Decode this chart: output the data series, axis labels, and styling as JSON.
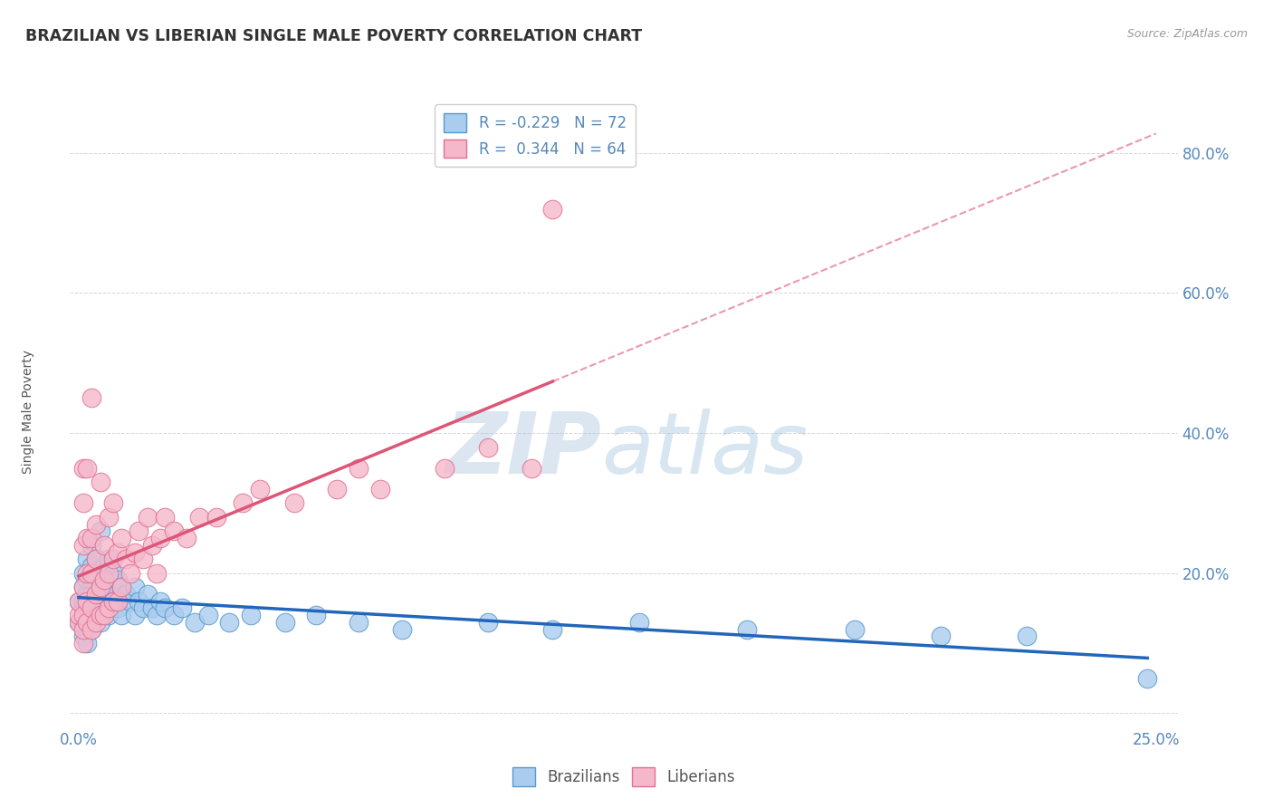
{
  "title": "BRAZILIAN VS LIBERIAN SINGLE MALE POVERTY CORRELATION CHART",
  "source": "Source: ZipAtlas.com",
  "ylabel": "Single Male Poverty",
  "legend_R_N": [
    {
      "R": "-0.229",
      "N": "72"
    },
    {
      "R": "0.344",
      "N": "64"
    }
  ],
  "watermark_zip": "ZIP",
  "watermark_atlas": "atlas",
  "brazil_color": "#aaccee",
  "brazil_edge": "#5599cc",
  "liberia_color": "#f5b8cb",
  "liberia_edge": "#e07090",
  "trend_brazil_color": "#2266bb",
  "trend_liberia_color": "#dd5577",
  "background_color": "#ffffff",
  "grid_color": "#cccccc",
  "title_color": "#333333",
  "axis_label_color": "#5588bb",
  "brazil_points_x": [
    0.0,
    0.0,
    0.001,
    0.001,
    0.001,
    0.001,
    0.001,
    0.001,
    0.001,
    0.002,
    0.002,
    0.002,
    0.002,
    0.002,
    0.002,
    0.002,
    0.003,
    0.003,
    0.003,
    0.003,
    0.003,
    0.003,
    0.003,
    0.004,
    0.004,
    0.004,
    0.004,
    0.005,
    0.005,
    0.005,
    0.005,
    0.006,
    0.006,
    0.006,
    0.007,
    0.007,
    0.007,
    0.008,
    0.008,
    0.009,
    0.009,
    0.01,
    0.01,
    0.011,
    0.012,
    0.013,
    0.013,
    0.014,
    0.015,
    0.016,
    0.017,
    0.018,
    0.019,
    0.02,
    0.022,
    0.024,
    0.027,
    0.03,
    0.035,
    0.04,
    0.048,
    0.055,
    0.065,
    0.075,
    0.095,
    0.11,
    0.13,
    0.155,
    0.18,
    0.2,
    0.22,
    0.248
  ],
  "brazil_points_y": [
    0.13,
    0.16,
    0.11,
    0.13,
    0.14,
    0.16,
    0.18,
    0.2,
    0.15,
    0.1,
    0.12,
    0.13,
    0.15,
    0.17,
    0.19,
    0.22,
    0.12,
    0.14,
    0.15,
    0.17,
    0.19,
    0.21,
    0.24,
    0.14,
    0.16,
    0.2,
    0.22,
    0.13,
    0.15,
    0.18,
    0.26,
    0.15,
    0.18,
    0.21,
    0.14,
    0.17,
    0.22,
    0.16,
    0.2,
    0.15,
    0.19,
    0.14,
    0.18,
    0.17,
    0.16,
    0.14,
    0.18,
    0.16,
    0.15,
    0.17,
    0.15,
    0.14,
    0.16,
    0.15,
    0.14,
    0.15,
    0.13,
    0.14,
    0.13,
    0.14,
    0.13,
    0.14,
    0.13,
    0.12,
    0.13,
    0.12,
    0.13,
    0.12,
    0.12,
    0.11,
    0.11,
    0.05
  ],
  "liberia_points_x": [
    0.0,
    0.0,
    0.0,
    0.001,
    0.001,
    0.001,
    0.001,
    0.001,
    0.001,
    0.001,
    0.002,
    0.002,
    0.002,
    0.002,
    0.002,
    0.003,
    0.003,
    0.003,
    0.003,
    0.003,
    0.004,
    0.004,
    0.004,
    0.004,
    0.005,
    0.005,
    0.005,
    0.006,
    0.006,
    0.006,
    0.007,
    0.007,
    0.007,
    0.008,
    0.008,
    0.008,
    0.009,
    0.009,
    0.01,
    0.01,
    0.011,
    0.012,
    0.013,
    0.014,
    0.015,
    0.016,
    0.017,
    0.018,
    0.019,
    0.02,
    0.022,
    0.025,
    0.028,
    0.032,
    0.038,
    0.042,
    0.05,
    0.06,
    0.065,
    0.07,
    0.085,
    0.095,
    0.105,
    0.11
  ],
  "liberia_points_y": [
    0.13,
    0.14,
    0.16,
    0.1,
    0.12,
    0.14,
    0.18,
    0.24,
    0.3,
    0.35,
    0.13,
    0.16,
    0.2,
    0.25,
    0.35,
    0.12,
    0.15,
    0.2,
    0.25,
    0.45,
    0.13,
    0.17,
    0.22,
    0.27,
    0.14,
    0.18,
    0.33,
    0.14,
    0.19,
    0.24,
    0.15,
    0.2,
    0.28,
    0.16,
    0.22,
    0.3,
    0.16,
    0.23,
    0.18,
    0.25,
    0.22,
    0.2,
    0.23,
    0.26,
    0.22,
    0.28,
    0.24,
    0.2,
    0.25,
    0.28,
    0.26,
    0.25,
    0.28,
    0.28,
    0.3,
    0.32,
    0.3,
    0.32,
    0.35,
    0.32,
    0.35,
    0.38,
    0.35,
    0.72
  ]
}
